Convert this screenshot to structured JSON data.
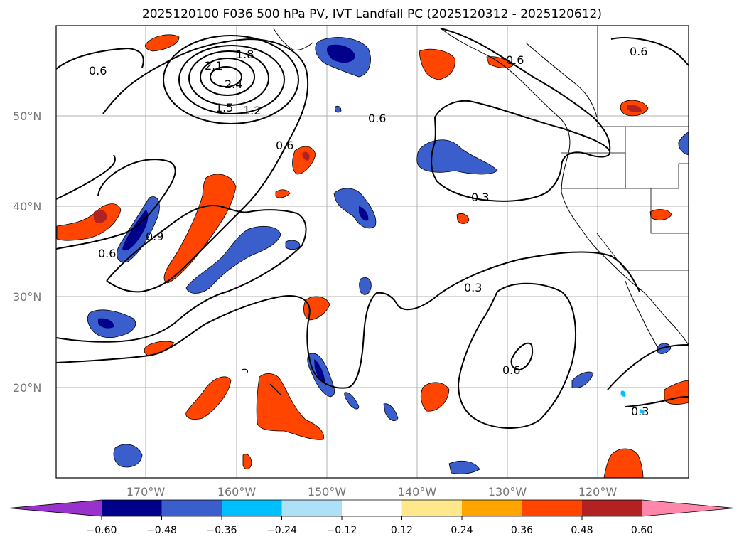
{
  "title": "2025120100 F036 500 hPa PV, IVT Landfall PC (2025120312 - 2025120612)",
  "map": {
    "lat_ticks": [
      "50°N",
      "40°N",
      "30°N",
      "20°N"
    ],
    "lon_ticks": [
      "170°W",
      "160°W",
      "150°W",
      "140°W",
      "130°W",
      "120°W"
    ],
    "contour_labels": [
      "0.6",
      "2.1",
      "1.8",
      "2.4",
      "1.5",
      "1.2",
      "0.6",
      "0.6",
      "0.6",
      "0.6",
      "0.3",
      "0.9",
      "0.6",
      "0.3",
      "0.6",
      "0.3"
    ]
  },
  "colorbar": {
    "tick_labels": [
      "−0.60",
      "−0.48",
      "−0.36",
      "−0.24",
      "−0.12",
      "0.12",
      "0.24",
      "0.36",
      "0.48",
      "0.60"
    ],
    "colors": [
      "#9932CC",
      "#00008B",
      "#3A5FCD",
      "#00BFFF",
      "#ADE1F8",
      "#FFFFFF",
      "#FFE88C",
      "#FFA500",
      "#FF4500",
      "#B22222",
      "#FF88AA"
    ]
  }
}
